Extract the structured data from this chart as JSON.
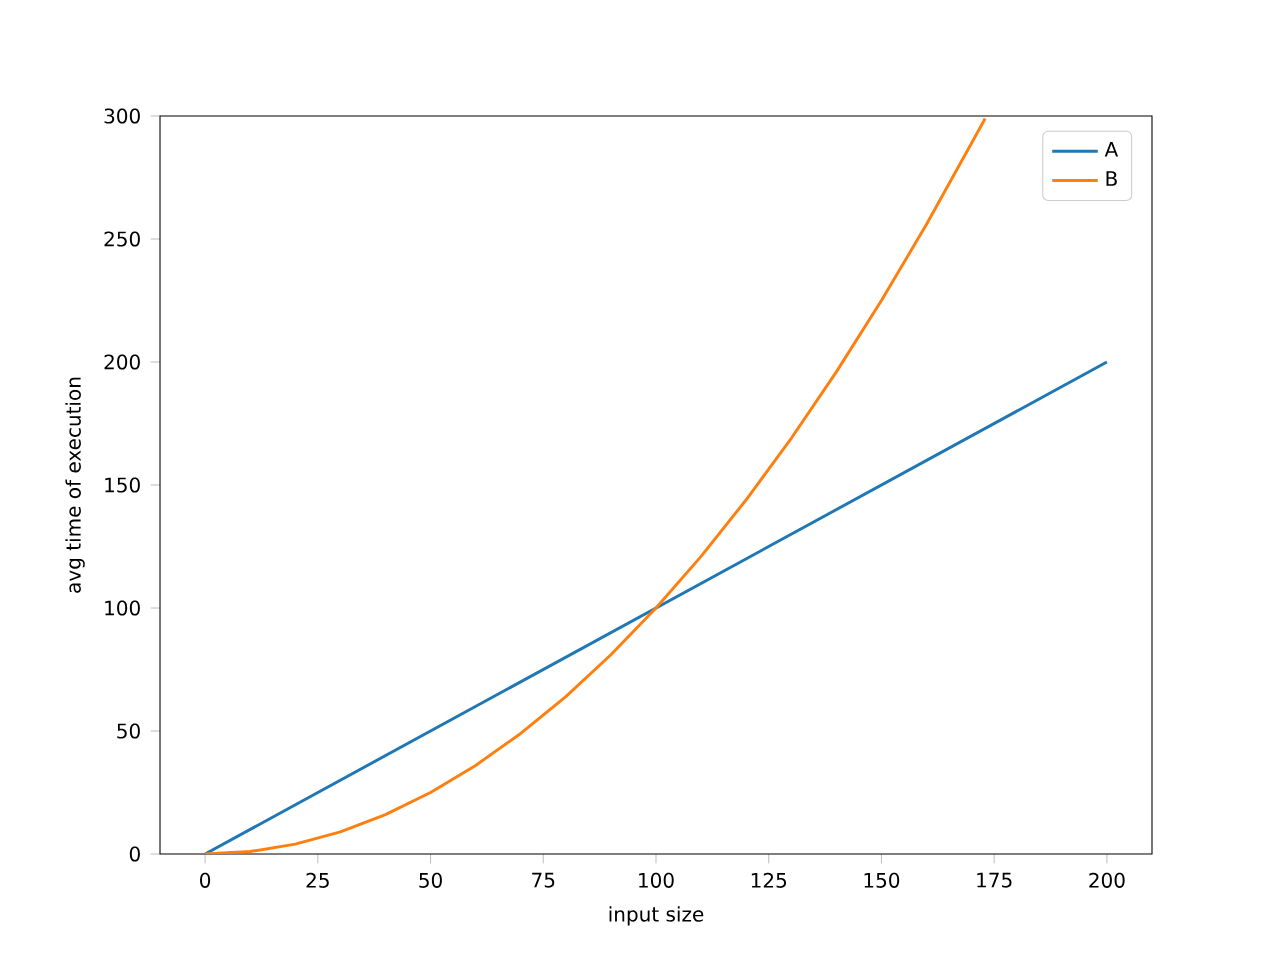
{
  "chart_data": {
    "type": "line",
    "xlabel": "input size",
    "ylabel": "avg time of execution",
    "xlim": [
      -10,
      210
    ],
    "ylim": [
      0,
      300
    ],
    "xticks": [
      0,
      25,
      50,
      75,
      100,
      125,
      150,
      175,
      200
    ],
    "yticks": [
      0,
      50,
      100,
      150,
      200,
      250,
      300
    ],
    "legend": "top right",
    "grid": false,
    "marker": "none",
    "line_style": "solid",
    "series": [
      {
        "name": "A",
        "color": "#1f77b4",
        "x": [
          0,
          200
        ],
        "values": [
          0,
          200
        ]
      },
      {
        "name": "B",
        "color": "#ff7f0e",
        "x": [
          0,
          10,
          20,
          30,
          40,
          50,
          60,
          70,
          80,
          90,
          100,
          110,
          120,
          130,
          140,
          150,
          160,
          170,
          173
        ],
        "values": [
          0,
          1,
          4,
          9,
          16,
          25,
          36,
          49,
          64,
          81,
          100,
          121,
          144,
          169,
          196,
          225,
          256,
          289,
          299
        ]
      }
    ]
  }
}
